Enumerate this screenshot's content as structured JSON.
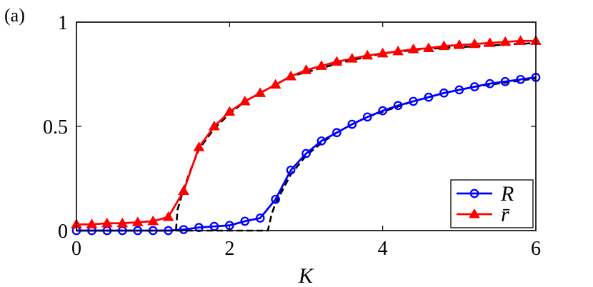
{
  "chart_data": {
    "type": "line",
    "panel_label": "(a)",
    "xlabel": "K",
    "ylabel": "",
    "xlim": [
      0,
      6
    ],
    "ylim": [
      0,
      1
    ],
    "xticks": [
      0,
      2,
      4,
      6
    ],
    "xtick_labels": [
      "0",
      "2",
      "4",
      "6"
    ],
    "yticks": [
      0,
      0.5,
      1
    ],
    "ytick_labels": [
      "0",
      "0.5",
      "1"
    ],
    "grid": false,
    "legend_position": "bottom-right",
    "series": [
      {
        "name": "R",
        "color": "#0000ff",
        "marker": "circle",
        "x": [
          0.0,
          0.2,
          0.4,
          0.6,
          0.8,
          1.0,
          1.2,
          1.4,
          1.6,
          1.8,
          2.0,
          2.2,
          2.4,
          2.6,
          2.8,
          3.0,
          3.2,
          3.4,
          3.6,
          3.8,
          4.0,
          4.2,
          4.4,
          4.6,
          4.8,
          5.0,
          5.2,
          5.4,
          5.6,
          5.8,
          6.0
        ],
        "values": [
          0.0,
          0.0,
          0.0,
          0.0,
          0.0,
          0.0,
          0.0,
          0.005,
          0.015,
          0.02,
          0.025,
          0.045,
          0.06,
          0.15,
          0.29,
          0.37,
          0.43,
          0.47,
          0.51,
          0.545,
          0.575,
          0.6,
          0.62,
          0.64,
          0.66,
          0.675,
          0.69,
          0.705,
          0.715,
          0.725,
          0.735
        ]
      },
      {
        "name": "r̄",
        "color": "#ff0000",
        "marker": "triangle",
        "x": [
          0.0,
          0.2,
          0.4,
          0.6,
          0.8,
          1.0,
          1.2,
          1.4,
          1.6,
          1.8,
          2.0,
          2.2,
          2.4,
          2.6,
          2.8,
          3.0,
          3.2,
          3.4,
          3.6,
          3.8,
          4.0,
          4.2,
          4.4,
          4.6,
          4.8,
          5.0,
          5.2,
          5.4,
          5.6,
          5.8,
          6.0
        ],
        "values": [
          0.03,
          0.03,
          0.035,
          0.035,
          0.04,
          0.045,
          0.065,
          0.19,
          0.4,
          0.5,
          0.57,
          0.62,
          0.66,
          0.7,
          0.74,
          0.77,
          0.79,
          0.81,
          0.825,
          0.84,
          0.85,
          0.86,
          0.87,
          0.875,
          0.885,
          0.89,
          0.895,
          0.9,
          0.905,
          0.91,
          0.91
        ]
      },
      {
        "name": "",
        "color": "#000000",
        "style": "dashed",
        "x": [
          0.0,
          1.3,
          1.32,
          1.4,
          1.5,
          1.6,
          1.8,
          2.0,
          2.2,
          2.4,
          2.6,
          2.8,
          3.0,
          3.5,
          4.0,
          4.5,
          5.0,
          5.5,
          6.0
        ],
        "values": [
          0.0,
          0.0,
          0.1,
          0.2,
          0.3,
          0.39,
          0.49,
          0.56,
          0.62,
          0.66,
          0.7,
          0.74,
          0.76,
          0.81,
          0.85,
          0.87,
          0.88,
          0.89,
          0.9
        ]
      },
      {
        "name": "",
        "color": "#000000",
        "style": "dashed",
        "x": [
          0.0,
          2.5,
          2.55,
          2.6,
          2.7,
          2.8,
          3.0,
          3.2,
          3.4,
          3.6,
          3.8,
          4.0,
          4.4,
          4.8,
          5.2,
          5.6,
          6.0
        ],
        "values": [
          0.0,
          0.0,
          0.08,
          0.13,
          0.2,
          0.27,
          0.36,
          0.42,
          0.47,
          0.51,
          0.545,
          0.57,
          0.62,
          0.66,
          0.69,
          0.71,
          0.73
        ]
      }
    ]
  }
}
